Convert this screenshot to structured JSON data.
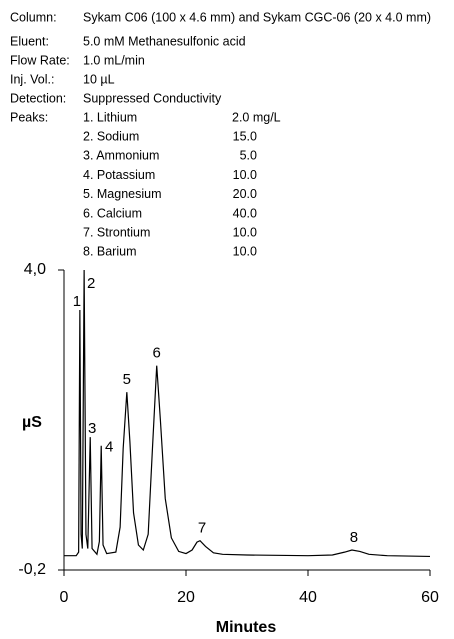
{
  "info": [
    {
      "label": "Column:",
      "value": "Sykam C06 (100 x 4.6 mm) and Sykam CGC-06 (20 x 4.0 mm)"
    },
    {
      "label": "Eluent:",
      "value": "5.0 mM Methanesulfonic acid"
    },
    {
      "label": "Flow Rate:",
      "value": "1.0 mL/min"
    },
    {
      "label": "Inj. Vol.:",
      "value": "10 µL"
    },
    {
      "label": "Detection:",
      "value": "Suppressed Conductivity"
    },
    {
      "label": "Peaks:",
      "value": ""
    }
  ],
  "peaks": [
    {
      "name": "1. Lithium",
      "amount": "2.0 mg/L"
    },
    {
      "name": "2. Sodium",
      "amount": "15.0"
    },
    {
      "name": "3. Ammonium",
      "amount": "5.0"
    },
    {
      "name": "4. Potassium",
      "amount": "10.0"
    },
    {
      "name": "5. Magnesium",
      "amount": "20.0"
    },
    {
      "name": "6. Calcium",
      "amount": "40.0"
    },
    {
      "name": "7. Strontium",
      "amount": "10.0"
    },
    {
      "name": "8. Barium",
      "amount": "10.0"
    }
  ],
  "chart_data": {
    "type": "line",
    "ylabel": "µS",
    "xlabel": "Minutes",
    "xlim": [
      0,
      60
    ],
    "xticks": [
      0,
      20,
      40,
      60
    ],
    "ylim": [
      -0.2,
      4.0
    ],
    "yticks": [
      {
        "value": -0.2,
        "label": "-0,2"
      },
      {
        "value": 4.0,
        "label": "4,0"
      }
    ],
    "peak_labels": [
      "1",
      "2",
      "3",
      "4",
      "5",
      "6",
      "7",
      "8"
    ],
    "x": [
      0,
      2.0,
      2.4,
      2.6,
      2.8,
      3.0,
      3.3,
      3.6,
      3.9,
      4.3,
      4.6,
      5.4,
      5.8,
      6.1,
      6.4,
      7.0,
      8.5,
      9.2,
      9.7,
      10.3,
      10.8,
      11.4,
      12.2,
      13.0,
      13.8,
      14.5,
      15.2,
      15.8,
      16.6,
      17.6,
      18.8,
      20.0,
      21.0,
      21.8,
      22.3,
      23.2,
      24.5,
      26.0,
      30.0,
      40.0,
      44.0,
      46.0,
      47.2,
      48.5,
      50.0,
      53.0,
      60.0
    ],
    "series": [
      {
        "color": "#000000",
        "values": [
          0.0,
          0.0,
          0.05,
          3.44,
          0.3,
          0.1,
          4.0,
          0.3,
          0.1,
          1.66,
          0.1,
          0.02,
          0.2,
          1.54,
          0.15,
          0.03,
          0.05,
          0.4,
          1.5,
          2.29,
          1.6,
          0.6,
          0.15,
          0.08,
          0.3,
          1.5,
          2.66,
          1.9,
          0.8,
          0.25,
          0.06,
          0.03,
          0.08,
          0.19,
          0.21,
          0.13,
          0.04,
          0.02,
          0.01,
          0.0,
          0.01,
          0.05,
          0.08,
          0.06,
          0.02,
          0.0,
          -0.01
        ]
      }
    ]
  }
}
